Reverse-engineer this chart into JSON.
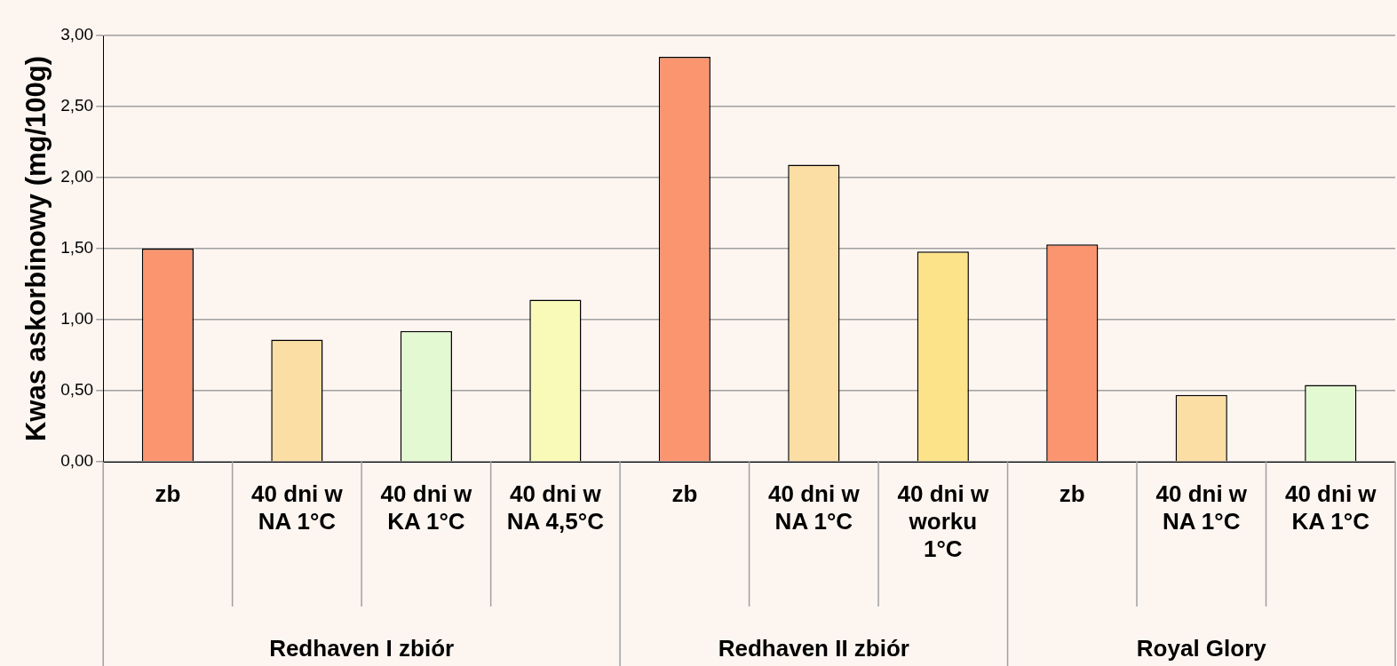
{
  "chart_data": {
    "type": "bar",
    "ylabel": "Kwas askorbinowy (mg/100g)",
    "categories": [
      "zb",
      "40 dni w NA 1°C",
      "40 dni w KA 1°C",
      "40 dni w NA 4,5°C",
      "zb",
      "40 dni w NA 1°C",
      "40 dni w worku 1°C",
      "zb",
      "40 dni w NA 1°C",
      "40 dni w KA 1°C"
    ],
    "values": [
      1.5,
      0.86,
      0.92,
      1.14,
      2.85,
      2.09,
      1.48,
      1.53,
      0.47,
      0.54
    ],
    "colors": [
      "#fa9570",
      "#fbdea4",
      "#e3f9d2",
      "#fafab8",
      "#fa9570",
      "#fbdea4",
      "#fce38a",
      "#fa9570",
      "#fbdea4",
      "#e3f9d2"
    ],
    "annotations": [
      "Redhaven I zbiór",
      "Redhaven II zbiór",
      "Royal Glory"
    ],
    "ylim": [
      0,
      3
    ],
    "yticks": [
      {
        "value": 0,
        "label": "0,00"
      },
      {
        "value": 0.5,
        "label": "0,50"
      },
      {
        "value": 1,
        "label": "1,00"
      },
      {
        "value": 1.5,
        "label": "1,50"
      },
      {
        "value": 2,
        "label": "2,00"
      },
      {
        "value": 2.5,
        "label": "2,50"
      },
      {
        "value": 3,
        "label": "3,00"
      }
    ],
    "grid": "y",
    "legend": false
  }
}
